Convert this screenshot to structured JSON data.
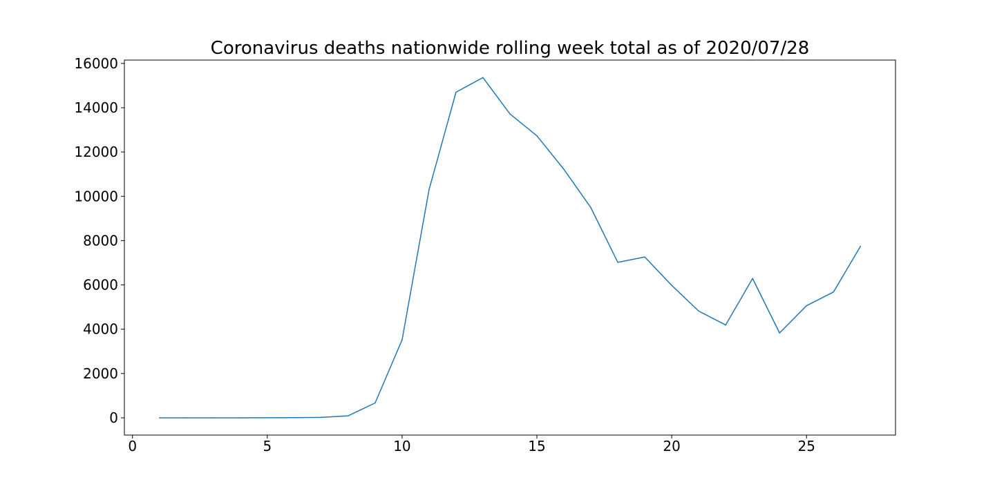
{
  "chart_data": {
    "type": "line",
    "title": "Coronavirus deaths nationwide rolling week total as of 2020/07/28",
    "xlabel": "",
    "ylabel": "",
    "xlim": [
      -0.3,
      28.3
    ],
    "ylim": [
      -780,
      16150
    ],
    "x_ticks": [
      0,
      5,
      10,
      15,
      20,
      25
    ],
    "y_ticks": [
      0,
      2000,
      4000,
      6000,
      8000,
      10000,
      12000,
      14000,
      16000
    ],
    "grid": false,
    "legend": "none",
    "series": [
      {
        "color": "#1f77b4",
        "x": [
          1,
          2,
          3,
          4,
          5,
          6,
          7,
          8,
          9,
          10,
          11,
          12,
          13,
          14,
          15,
          16,
          17,
          18,
          19,
          20,
          21,
          22,
          23,
          24,
          25,
          26,
          27
        ],
        "y": [
          0,
          0,
          0,
          1,
          2,
          8,
          20,
          90,
          670,
          3520,
          10300,
          14700,
          15360,
          13720,
          12730,
          11220,
          9490,
          7020,
          7260,
          5980,
          4820,
          4190,
          6290,
          3830,
          5060,
          5680,
          7740
        ]
      }
    ]
  }
}
